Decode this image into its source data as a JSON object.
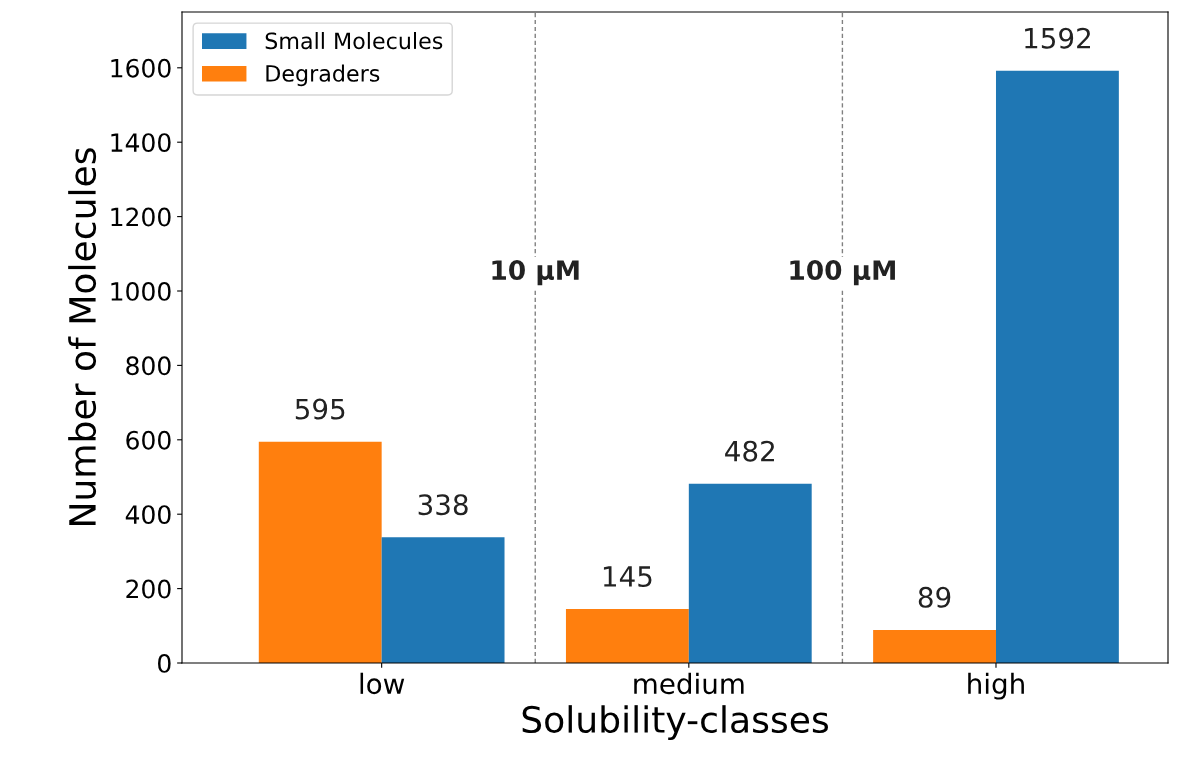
{
  "chart_data": {
    "type": "bar",
    "xlabel": "Solubility-classes",
    "ylabel": "Number of Molecules",
    "categories": [
      "low",
      "medium",
      "high"
    ],
    "series": [
      {
        "name": "Degraders",
        "color": "#ff7f0e",
        "values": [
          595,
          145,
          89
        ]
      },
      {
        "name": "Small Molecules",
        "color": "#1f77b4",
        "values": [
          338,
          482,
          1592
        ]
      }
    ],
    "ylim": [
      0,
      1750
    ],
    "yticks": [
      0,
      200,
      400,
      600,
      800,
      1000,
      1200,
      1400,
      1600
    ],
    "annotations": [
      "10 µM",
      "100 µM"
    ],
    "data_labels": true,
    "legend": "top left",
    "grid": false
  }
}
